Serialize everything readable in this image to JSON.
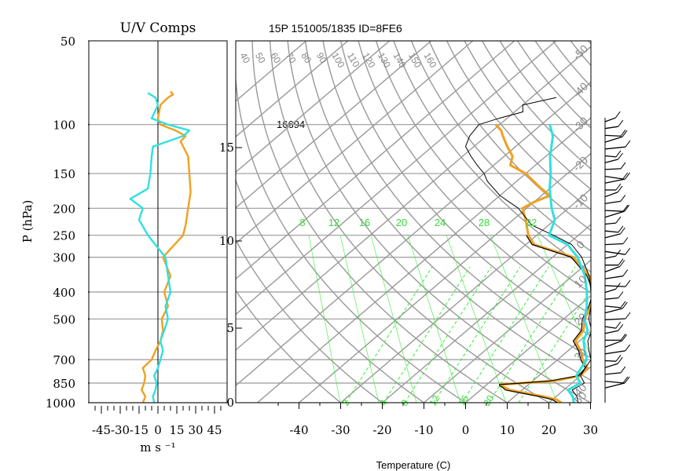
{
  "chart_data": [
    {
      "type": "line",
      "title": "U/V Comps",
      "ylabel": "P (hPa)",
      "xlabel": "m s ⁻¹",
      "y_scale": "log",
      "ylim": [
        1000,
        50
      ],
      "xlim": [
        -55,
        55
      ],
      "y_ticks": [
        50,
        100,
        150,
        200,
        250,
        300,
        400,
        500,
        700,
        850,
        1000
      ],
      "x_tick_labels": [
        "-45",
        "-30",
        "-15",
        "0",
        "15",
        "30",
        "45"
      ],
      "x_ticks": [
        -45,
        -30,
        -15,
        0,
        15,
        30,
        45
      ],
      "grid": true,
      "series": [
        {
          "color": "#f0a020",
          "p": [
            1000,
            950,
            900,
            850,
            800,
            750,
            700,
            650,
            600,
            550,
            500,
            450,
            400,
            350,
            300,
            250,
            230,
            200,
            175,
            150,
            130,
            115,
            110,
            105,
            100,
            95,
            85,
            80,
            78,
            76
          ],
          "v": [
            -12,
            -10,
            -13,
            -11,
            -10,
            -12,
            -5,
            -2,
            2,
            4,
            3,
            8,
            5,
            10,
            4,
            20,
            22,
            24,
            26,
            25,
            24,
            18,
            22,
            14,
            2,
            0,
            2,
            8,
            12,
            10
          ]
        },
        {
          "color": "#30e0e0",
          "p": [
            1000,
            950,
            900,
            850,
            800,
            750,
            700,
            650,
            600,
            550,
            500,
            450,
            400,
            350,
            300,
            250,
            220,
            200,
            185,
            170,
            150,
            130,
            120,
            110,
            105,
            100,
            95,
            85,
            80,
            77
          ],
          "v": [
            -3,
            -4,
            -2,
            -1,
            -3,
            0,
            2,
            4,
            2,
            5,
            8,
            6,
            10,
            8,
            6,
            -8,
            -15,
            -12,
            -22,
            -8,
            -6,
            -5,
            -4,
            20,
            25,
            8,
            -5,
            0,
            -2,
            -8
          ]
        }
      ]
    },
    {
      "type": "line",
      "title": "15P 151005/1835 ID=8FE6",
      "xlabel": "Temperature (C)",
      "xlim": [
        -45,
        45
      ],
      "x_tick_labels": [
        "-40",
        "-30",
        "-20",
        "-10",
        "0",
        "10",
        "20",
        "30"
      ],
      "x_ticks": [
        -40,
        -30,
        -20,
        -10,
        0,
        10,
        20,
        30
      ],
      "height_ticks_km": [
        0,
        5,
        10,
        15
      ],
      "annotation": "16694",
      "mixing_ratio_labels": [
        "8",
        "12",
        "16",
        "20",
        "24",
        "28",
        "32"
      ],
      "dry_adiabat_labels": [
        "40",
        "50",
        "60",
        "70",
        "80",
        "90",
        "100",
        "110",
        "120",
        "130",
        "140",
        "150",
        "160"
      ],
      "moist_adiabat_labels": [
        "2",
        "4",
        "8",
        "12",
        "16",
        "20"
      ],
      "isotherm_labels": [
        "-50",
        "-40",
        "-30",
        "-20",
        "-10",
        "0",
        "10",
        "20",
        "30",
        "40",
        "50"
      ],
      "series": [
        {
          "color": "#f0a020",
          "p": [
            1000,
            975,
            950,
            925,
            900,
            880,
            870,
            860,
            850,
            835,
            800,
            750,
            700,
            650,
            600,
            550,
            500,
            450,
            400,
            350,
            300,
            270,
            250,
            220,
            200,
            190,
            180,
            170,
            150,
            140,
            130,
            120,
            110,
            105,
            100
          ],
          "t": [
            23,
            21,
            17,
            12,
            7,
            5,
            4,
            3.5,
            8,
            15,
            20,
            19.5,
            16,
            13,
            9,
            8,
            5,
            3,
            0,
            -6,
            -15,
            -28,
            -32,
            -37,
            -41,
            -40,
            -38,
            -42,
            -50,
            -56,
            -58,
            -62,
            -66,
            -68,
            -71
          ]
        },
        {
          "color": "#000000",
          "p": [
            1000,
            975,
            950,
            925,
            900,
            880,
            870,
            860,
            850,
            835,
            800,
            750,
            700,
            650,
            600,
            550,
            500,
            450,
            400,
            350,
            300,
            270,
            250
          ],
          "t": [
            22,
            20,
            16,
            11,
            6,
            4.5,
            3.5,
            3,
            8,
            14,
            19.5,
            19,
            15.5,
            12.5,
            8.5,
            7.5,
            4.5,
            2.5,
            -0.5,
            -6.5,
            -15.5,
            -28.5,
            -32.5
          ]
        },
        {
          "color": "#000000",
          "p": [
            1000,
            950,
            900,
            850,
            800,
            750,
            700,
            650,
            600,
            550,
            500,
            450,
            400,
            350,
            300,
            270,
            250,
            230,
            200,
            180,
            160,
            150,
            140,
            130,
            120,
            110,
            100,
            95,
            90,
            85,
            80
          ],
          "t": [
            27,
            25,
            22,
            23,
            20,
            19,
            18,
            15,
            12,
            10,
            6,
            3,
            -1,
            -6,
            -13,
            -19,
            -26,
            -34,
            -42,
            -50,
            -57,
            -60,
            -64,
            -68,
            -72,
            -74,
            -75,
            -72,
            -68,
            -70,
            -64
          ]
        },
        {
          "color": "#30e0e0",
          "p": [
            1000,
            950,
            900,
            850,
            800,
            750,
            700,
            650,
            600,
            550,
            500,
            450,
            400,
            350,
            300,
            270,
            250,
            220,
            200,
            170,
            150,
            130,
            110,
            100
          ],
          "t": [
            26,
            24,
            21,
            22,
            19,
            18,
            17,
            14,
            11,
            9,
            5,
            2,
            -2,
            -7,
            -14,
            -20,
            -27,
            -30,
            -34,
            -40,
            -44,
            -49,
            -54,
            -58
          ]
        }
      ]
    }
  ],
  "colors": {
    "temperature": "#f0a020",
    "dewpoint_and_parcel": "#000000",
    "virtual_temperature": "#30e0e0",
    "grid": "#999999",
    "mixing_ratio": "#33ee33"
  }
}
